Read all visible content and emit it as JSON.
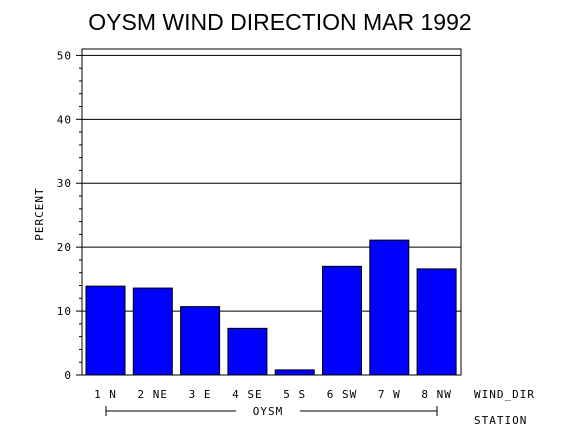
{
  "chart_data": {
    "type": "bar",
    "title": "OYSM WIND DIRECTION MAR 1992",
    "ylabel": "PERCENT",
    "xlabel": "WIND_DIR",
    "group_axis_label": "STATION",
    "group_label": "OYSM",
    "categories": [
      "1 N",
      "2 NE",
      "3 E",
      "4 SE",
      "5 S",
      "6 SW",
      "7 W",
      "8 NW"
    ],
    "values": [
      13.9,
      13.6,
      10.7,
      7.3,
      0.8,
      17.0,
      21.1,
      16.6
    ],
    "ylim": [
      0,
      50
    ],
    "yticks": [
      0,
      10,
      20,
      30,
      40,
      50
    ],
    "grid": true,
    "bar_color": "#0000ff"
  }
}
